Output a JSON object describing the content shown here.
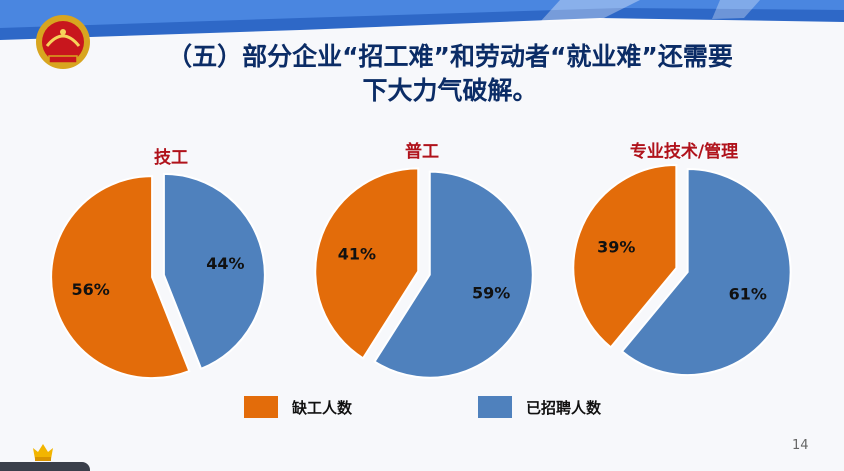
{
  "slide": {
    "title_line1": "（五）部分企业“招工难”和劳动者“就业难”还需要",
    "title_line2": "下大力气破解。",
    "page_number": "14"
  },
  "colors": {
    "orange": "#e36c0a",
    "blue": "#4f81bd",
    "title_blue": "#0b2c66",
    "chart_title_red": "#b0121b"
  },
  "icons": [
    "emblem-icon",
    "vip-badge-icon"
  ],
  "legend": [
    {
      "label": "缺工人数",
      "color": "#e36c0a"
    },
    {
      "label": "已招聘人数",
      "color": "#4f81bd"
    }
  ],
  "chart_data": [
    {
      "type": "pie",
      "title": "技工",
      "labels": [
        "缺工人数",
        "已招聘人数"
      ],
      "values": [
        56,
        44
      ],
      "value_labels": [
        "56%",
        "44%"
      ]
    },
    {
      "type": "pie",
      "title": "普工",
      "labels": [
        "缺工人数",
        "已招聘人数"
      ],
      "values": [
        41,
        59
      ],
      "value_labels": [
        "41%",
        "59%"
      ]
    },
    {
      "type": "pie",
      "title": "专业技术/管理",
      "labels": [
        "缺工人数",
        "已招聘人数"
      ],
      "values": [
        39,
        61
      ],
      "value_labels": [
        "39%",
        "61%"
      ]
    }
  ]
}
